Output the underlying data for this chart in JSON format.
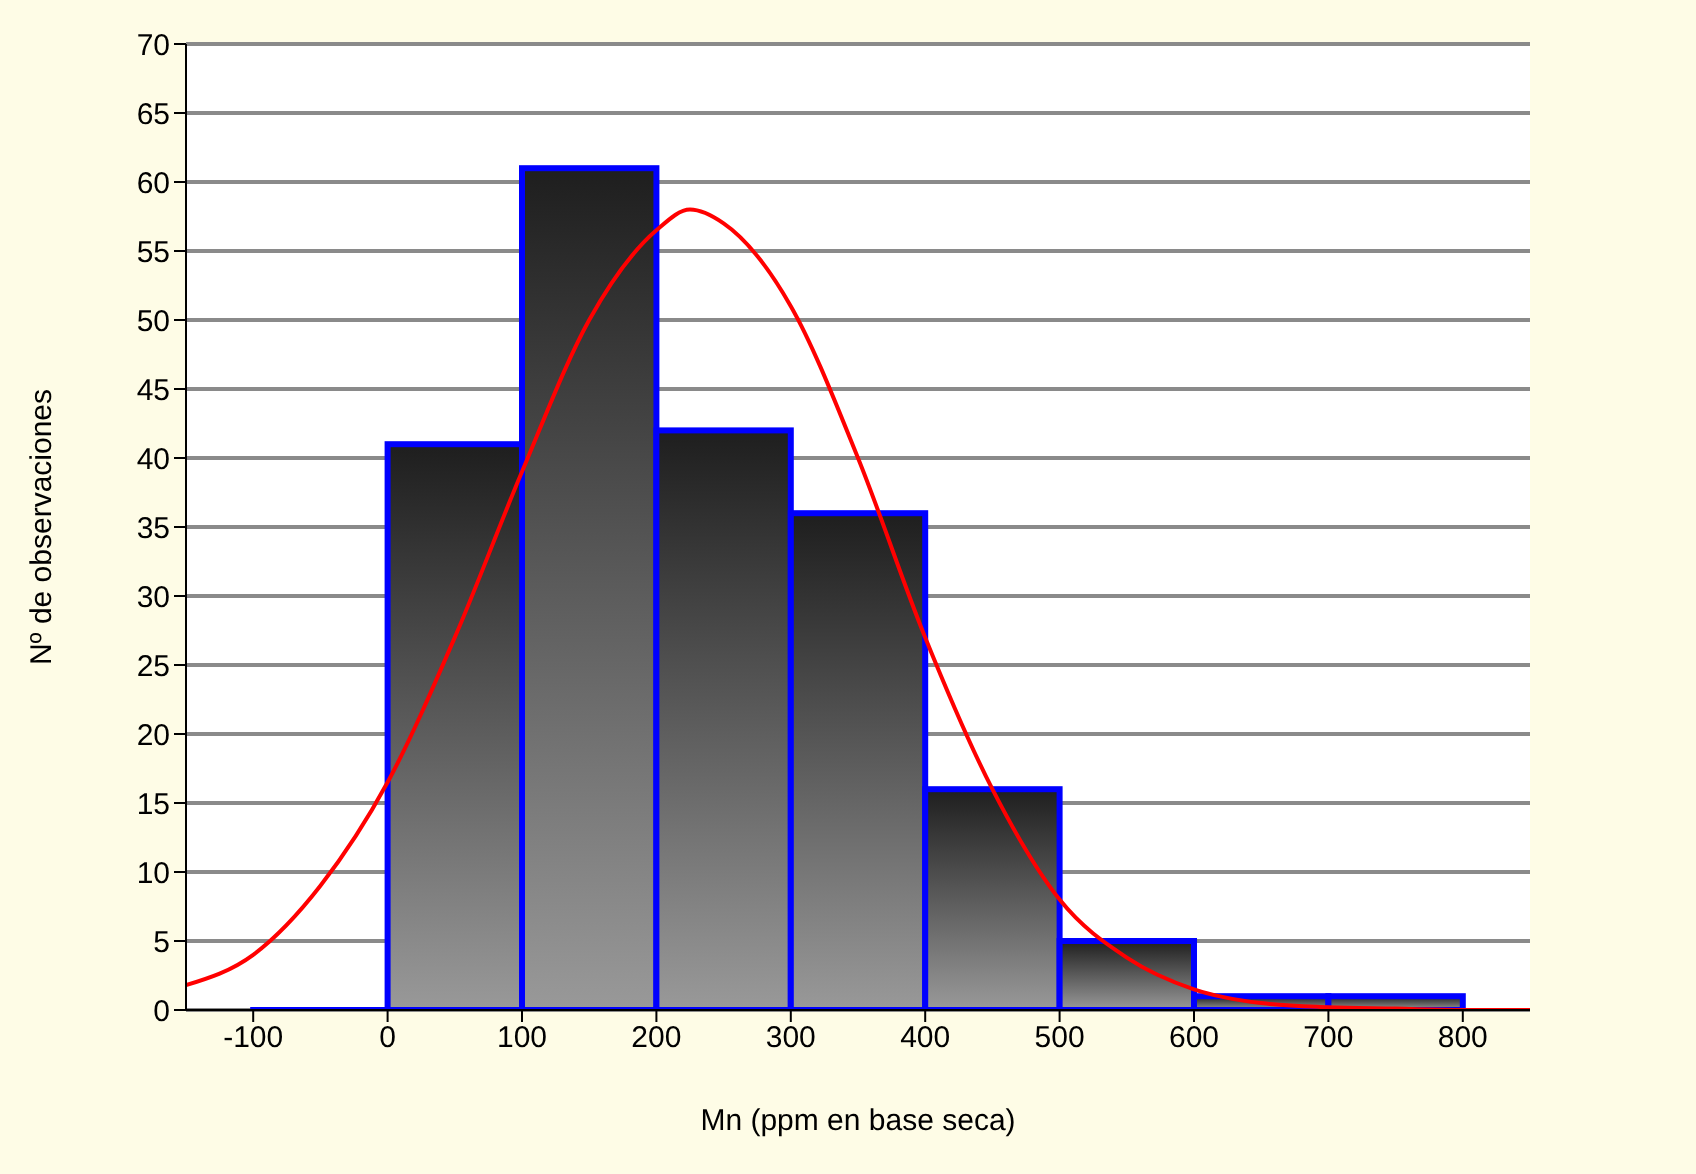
{
  "chart_data": {
    "type": "histogram",
    "xlabel": "Mn (ppm en base seca)",
    "ylabel": "Nº de observaciones",
    "bins": [
      -100,
      0,
      100,
      200,
      300,
      400,
      500,
      600,
      700,
      800
    ],
    "values": [
      0,
      41,
      61,
      42,
      36,
      16,
      5,
      1,
      1
    ],
    "color": "#0000ff",
    "series": [
      {
        "type": "line",
        "color": "#ff0000",
        "x": [
          -150,
          -100,
          -50,
          0,
          50,
          100,
          150,
          200,
          225,
          250,
          300,
          350,
          400,
          450,
          500,
          550,
          600,
          650,
          700,
          750,
          800,
          850
        ],
        "values": [
          1.8,
          4,
          9,
          16.5,
          27,
          39,
          50,
          56.5,
          58,
          57,
          51,
          40,
          27,
          16,
          8,
          3.8,
          1.5,
          0.5,
          0.2,
          0.1,
          0,
          0
        ]
      }
    ],
    "xlim": [
      -150,
      850
    ],
    "xticks": [
      -100,
      0,
      100,
      200,
      300,
      400,
      500,
      600,
      700,
      800
    ],
    "ylim": [
      0,
      70
    ],
    "yticks": [
      0,
      5,
      10,
      15,
      20,
      25,
      30,
      35,
      40,
      45,
      50,
      55,
      60,
      65,
      70
    ],
    "grid": "y",
    "legend": false
  }
}
